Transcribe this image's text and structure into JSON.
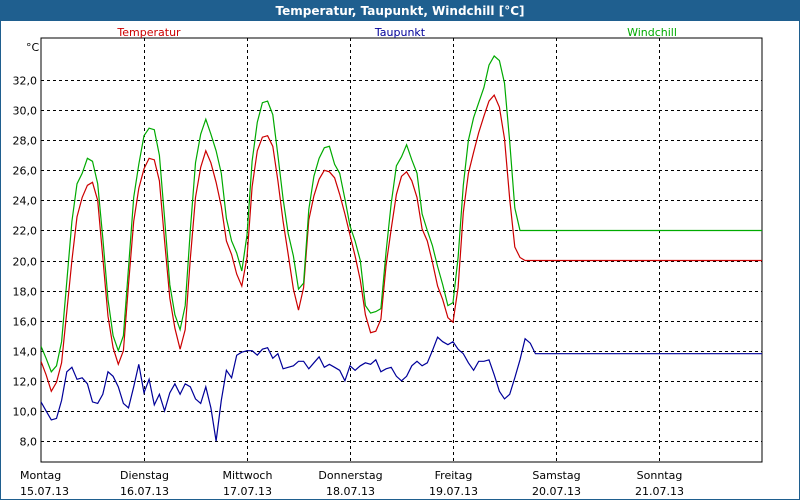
{
  "chart_data": {
    "type": "line",
    "title": "Temperatur, Taupunkt, Windchill [°C]",
    "ylabel": "°C",
    "ylim": [
      6.6,
      34.8
    ],
    "yticks": [
      8.0,
      10.0,
      12.0,
      14.0,
      16.0,
      18.0,
      20.0,
      22.0,
      24.0,
      26.0,
      28.0,
      30.0,
      32.0
    ],
    "ytick_labels": [
      "8,0",
      "10,0",
      "12,0",
      "14,0",
      "16,0",
      "18,0",
      "20,0",
      "22,0",
      "24,0",
      "26,0",
      "28,0",
      "30,0",
      "32,0"
    ],
    "xlim": [
      0,
      7
    ],
    "grid": true,
    "x_labels": [
      {
        "day": "Montag",
        "date": "15.07.13"
      },
      {
        "day": "Dienstag",
        "date": "16.07.13"
      },
      {
        "day": "Mittwoch",
        "date": "17.07.13"
      },
      {
        "day": "Donnerstag",
        "date": "18.07.13"
      },
      {
        "day": "Freitag",
        "date": "19.07.13"
      },
      {
        "day": "Samstag",
        "date": "20.07.13"
      },
      {
        "day": "Sonntag",
        "date": "21.07.13"
      }
    ],
    "series": [
      {
        "name": "Temperatur",
        "color": "#cc0000",
        "x": [
          0.0,
          0.05,
          0.1,
          0.15,
          0.2,
          0.25,
          0.3,
          0.35,
          0.4,
          0.45,
          0.5,
          0.55,
          0.6,
          0.65,
          0.7,
          0.75,
          0.8,
          0.85,
          0.9,
          0.95,
          1.0,
          1.05,
          1.1,
          1.15,
          1.2,
          1.25,
          1.3,
          1.35,
          1.4,
          1.45,
          1.5,
          1.55,
          1.6,
          1.65,
          1.7,
          1.75,
          1.8,
          1.85,
          1.9,
          1.95,
          2.0,
          2.05,
          2.1,
          2.15,
          2.2,
          2.25,
          2.3,
          2.35,
          2.4,
          2.45,
          2.5,
          2.55,
          2.6,
          2.65,
          2.7,
          2.75,
          2.8,
          2.85,
          2.9,
          2.95,
          3.0,
          3.05,
          3.1,
          3.15,
          3.2,
          3.25,
          3.3,
          3.35,
          3.4,
          3.45,
          3.5,
          3.55,
          3.6,
          3.65,
          3.7,
          3.75,
          3.8,
          3.85,
          3.9,
          3.95,
          4.0,
          4.05,
          4.1,
          4.15,
          4.2,
          4.25,
          4.3,
          4.35,
          4.4,
          4.45,
          4.5,
          4.55,
          4.6,
          4.65,
          4.7,
          4.75,
          4.8,
          4.85,
          4.9,
          4.95,
          5.0,
          5.05,
          5.1,
          5.15,
          5.2,
          5.25,
          5.3,
          5.35,
          5.4,
          5.45,
          5.5,
          5.55,
          5.6,
          5.65,
          5.7,
          5.75,
          5.8,
          5.85,
          5.9,
          5.95,
          6.0,
          6.05,
          6.1,
          6.15,
          6.2,
          6.25,
          6.3,
          6.35,
          6.4,
          6.45,
          6.5,
          6.55,
          6.6,
          6.65,
          6.7,
          6.75,
          6.8,
          6.85,
          6.9,
          6.95,
          7.0
        ],
        "values": [
          13.3,
          12.4,
          11.3,
          11.9,
          13.2,
          16.6,
          20.0,
          22.9,
          24.2,
          25.0,
          25.2,
          24.0,
          20.2,
          16.3,
          14.2,
          13.1,
          14.0,
          18.4,
          22.6,
          24.8,
          26.1,
          26.8,
          26.7,
          25.3,
          21.3,
          17.5,
          15.5,
          14.1,
          15.4,
          20.1,
          24.2,
          26.2,
          27.3,
          26.5,
          25.2,
          23.6,
          21.3,
          20.4,
          19.1,
          18.3,
          20.2,
          24.9,
          27.3,
          28.2,
          28.3,
          27.6,
          25.3,
          22.6,
          20.4,
          18.1,
          16.7,
          18.2,
          22.7,
          24.3,
          25.4,
          26.0,
          25.9,
          25.5,
          24.4,
          23.1,
          21.7,
          20.3,
          18.7,
          16.4,
          15.2,
          15.3,
          16.1,
          19.7,
          22.1,
          24.4,
          25.6,
          25.9,
          25.3,
          24.2,
          22.1,
          21.3,
          19.9,
          18.3,
          17.4,
          16.2,
          15.9,
          18.2,
          23.2,
          25.8,
          27.2,
          28.5,
          29.6,
          30.6,
          31.0,
          30.2,
          28.1,
          24.1,
          20.9,
          20.2,
          20.0,
          20.0,
          20.0,
          20.0,
          20.0,
          20.0,
          20.0,
          20.0,
          20.0,
          20.0,
          20.0,
          20.0,
          20.0,
          20.0,
          20.0,
          20.0,
          20.0,
          20.0,
          20.0,
          20.0,
          20.0,
          20.0,
          20.0,
          20.0,
          20.0,
          20.0,
          20.0,
          20.0,
          20.0,
          20.0,
          20.0,
          20.0,
          20.0,
          20.0,
          20.0,
          20.0,
          20.0,
          20.0,
          20.0,
          20.0,
          20.0,
          20.0,
          20.0,
          20.0,
          20.0,
          20.0,
          20.0
        ]
      },
      {
        "name": "Taupunkt",
        "color": "#000099",
        "x": [
          0.0,
          0.05,
          0.1,
          0.15,
          0.2,
          0.25,
          0.3,
          0.35,
          0.4,
          0.45,
          0.5,
          0.55,
          0.6,
          0.65,
          0.7,
          0.75,
          0.8,
          0.85,
          0.9,
          0.95,
          1.0,
          1.05,
          1.1,
          1.15,
          1.2,
          1.25,
          1.3,
          1.35,
          1.4,
          1.45,
          1.5,
          1.55,
          1.6,
          1.65,
          1.7,
          1.75,
          1.8,
          1.85,
          1.9,
          1.95,
          2.0,
          2.05,
          2.1,
          2.15,
          2.2,
          2.25,
          2.3,
          2.35,
          2.4,
          2.45,
          2.5,
          2.55,
          2.6,
          2.65,
          2.7,
          2.75,
          2.8,
          2.85,
          2.9,
          2.95,
          3.0,
          3.05,
          3.1,
          3.15,
          3.2,
          3.25,
          3.3,
          3.35,
          3.4,
          3.45,
          3.5,
          3.55,
          3.6,
          3.65,
          3.7,
          3.75,
          3.8,
          3.85,
          3.9,
          3.95,
          4.0,
          4.05,
          4.1,
          4.15,
          4.2,
          4.25,
          4.3,
          4.35,
          4.4,
          4.45,
          4.5,
          4.55,
          4.6,
          4.65,
          4.7,
          4.75,
          4.8,
          4.85,
          4.9,
          4.95,
          5.0,
          5.05,
          5.1,
          5.15,
          5.2,
          5.25,
          5.3,
          5.35,
          5.4,
          5.45,
          5.5,
          5.55,
          5.6,
          5.65,
          5.7,
          5.75,
          5.8,
          5.85,
          5.9,
          5.95,
          6.0,
          6.05,
          6.1,
          6.15,
          6.2,
          6.25,
          6.3,
          6.35,
          6.4,
          6.45,
          6.5,
          6.55,
          6.6,
          6.65,
          6.7,
          6.75,
          6.8,
          6.85,
          6.9,
          6.95,
          7.0
        ],
        "values": [
          10.6,
          10.0,
          9.4,
          9.5,
          10.7,
          12.6,
          12.9,
          12.1,
          12.2,
          11.8,
          10.6,
          10.5,
          11.1,
          12.6,
          12.3,
          11.6,
          10.5,
          10.2,
          11.6,
          13.1,
          11.2,
          12.1,
          10.4,
          11.1,
          10.0,
          11.2,
          11.8,
          11.1,
          11.8,
          11.6,
          10.8,
          10.5,
          11.6,
          10.2,
          8.0,
          10.7,
          12.7,
          12.2,
          13.7,
          13.9,
          14.0,
          14.0,
          13.7,
          14.1,
          14.2,
          13.5,
          13.8,
          12.8,
          12.9,
          13.0,
          13.3,
          13.3,
          12.8,
          13.2,
          13.6,
          12.9,
          13.1,
          12.9,
          12.7,
          12.0,
          13.0,
          12.7,
          13.0,
          13.2,
          13.1,
          13.4,
          12.6,
          12.8,
          12.9,
          12.3,
          12.0,
          12.3,
          13.0,
          13.3,
          13.0,
          13.2,
          14.0,
          14.9,
          14.6,
          14.4,
          14.6,
          14.1,
          13.8,
          13.2,
          12.7,
          13.3,
          13.3,
          13.4,
          12.4,
          11.3,
          10.8,
          11.1,
          12.2,
          13.4,
          14.8,
          14.5,
          13.8,
          13.8,
          13.8,
          13.8,
          13.8,
          13.8,
          13.8,
          13.8,
          13.8,
          13.8,
          13.8,
          13.8,
          13.8,
          13.8,
          13.8,
          13.8,
          13.8,
          13.8,
          13.8,
          13.8,
          13.8,
          13.8,
          13.8,
          13.8,
          13.8,
          13.8,
          13.8,
          13.8,
          13.8,
          13.8,
          13.8,
          13.8,
          13.8,
          13.8,
          13.8,
          13.8,
          13.8,
          13.8,
          13.8,
          13.8,
          13.8,
          13.8,
          13.8,
          13.8,
          13.8
        ]
      },
      {
        "name": "Windchill",
        "color": "#00aa00",
        "x": [
          0.0,
          0.05,
          0.1,
          0.15,
          0.2,
          0.25,
          0.3,
          0.35,
          0.4,
          0.45,
          0.5,
          0.55,
          0.6,
          0.65,
          0.7,
          0.75,
          0.8,
          0.85,
          0.9,
          0.95,
          1.0,
          1.05,
          1.1,
          1.15,
          1.2,
          1.25,
          1.3,
          1.35,
          1.4,
          1.45,
          1.5,
          1.55,
          1.6,
          1.65,
          1.7,
          1.75,
          1.8,
          1.85,
          1.9,
          1.95,
          2.0,
          2.05,
          2.1,
          2.15,
          2.2,
          2.25,
          2.3,
          2.35,
          2.4,
          2.45,
          2.5,
          2.55,
          2.6,
          2.65,
          2.7,
          2.75,
          2.8,
          2.85,
          2.9,
          2.95,
          3.0,
          3.05,
          3.1,
          3.15,
          3.2,
          3.25,
          3.3,
          3.35,
          3.4,
          3.45,
          3.5,
          3.55,
          3.6,
          3.65,
          3.7,
          3.75,
          3.8,
          3.85,
          3.9,
          3.95,
          4.0,
          4.05,
          4.1,
          4.15,
          4.2,
          4.25,
          4.3,
          4.35,
          4.4,
          4.45,
          4.5,
          4.55,
          4.6,
          4.65,
          4.7,
          4.75,
          4.8,
          4.85,
          4.9,
          4.95,
          5.0,
          5.05,
          5.1,
          5.15,
          5.2,
          5.25,
          5.3,
          5.35,
          5.4,
          5.45,
          5.5,
          5.55,
          5.6,
          5.65,
          5.7,
          5.75,
          5.8,
          5.85,
          5.9,
          5.95,
          6.0,
          6.05,
          6.1,
          6.15,
          6.2,
          6.25,
          6.3,
          6.35,
          6.4,
          6.45,
          6.5,
          6.55,
          6.6,
          6.65,
          6.7,
          6.75,
          6.8,
          6.85,
          6.9,
          6.95,
          7.0
        ],
        "values": [
          14.3,
          13.5,
          12.6,
          13.0,
          14.6,
          18.6,
          22.6,
          25.1,
          25.8,
          26.8,
          26.6,
          25.1,
          21.5,
          17.4,
          15.0,
          14.0,
          15.0,
          19.5,
          24.2,
          26.4,
          28.3,
          28.8,
          28.7,
          27.0,
          22.8,
          18.4,
          16.4,
          15.4,
          17.0,
          22.0,
          26.5,
          28.4,
          29.4,
          28.4,
          27.3,
          25.8,
          22.8,
          21.3,
          20.5,
          19.3,
          21.7,
          26.6,
          29.2,
          30.5,
          30.6,
          29.7,
          27.0,
          24.1,
          21.8,
          20.3,
          18.1,
          18.5,
          23.4,
          25.6,
          26.8,
          27.5,
          27.6,
          26.4,
          25.8,
          24.1,
          22.3,
          21.3,
          20.0,
          17.0,
          16.5,
          16.6,
          16.8,
          20.6,
          23.8,
          26.3,
          26.9,
          27.7,
          26.7,
          25.8,
          23.1,
          22.0,
          21.0,
          19.6,
          18.4,
          17.0,
          17.2,
          20.2,
          25.0,
          28.0,
          29.5,
          30.5,
          31.5,
          33.0,
          33.6,
          33.3,
          31.8,
          27.9,
          23.5,
          22.0,
          22.0,
          22.0,
          22.0,
          22.0,
          22.0,
          22.0,
          22.0,
          22.0,
          22.0,
          22.0,
          22.0,
          22.0,
          22.0,
          22.0,
          22.0,
          22.0,
          22.0,
          22.0,
          22.0,
          22.0,
          22.0,
          22.0,
          22.0,
          22.0,
          22.0,
          22.0,
          22.0,
          22.0,
          22.0,
          22.0,
          22.0,
          22.0,
          22.0,
          22.0,
          22.0,
          22.0,
          22.0,
          22.0,
          22.0,
          22.0,
          22.0,
          22.0,
          22.0,
          22.0,
          22.0,
          22.0,
          22.0
        ]
      }
    ]
  }
}
